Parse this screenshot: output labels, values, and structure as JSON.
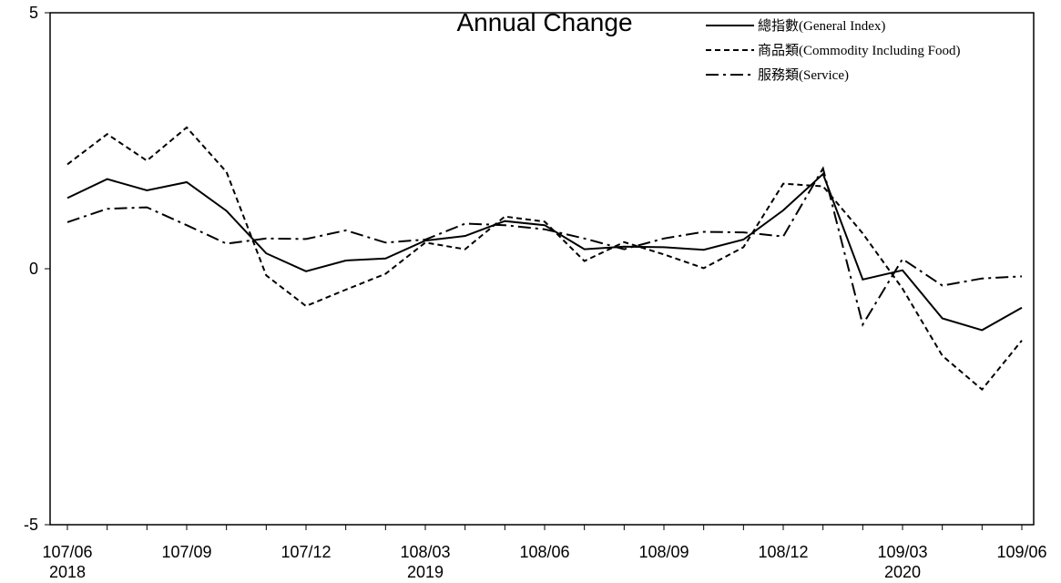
{
  "chart_data": {
    "type": "line",
    "title": "Annual Change",
    "ylim": [
      -5,
      5
    ],
    "y_ticks": [
      "5",
      "0",
      "-5"
    ],
    "y_tick_values": [
      5,
      0,
      -5
    ],
    "x": [
      "107/06",
      "107/07",
      "107/08",
      "107/09",
      "107/10",
      "107/11",
      "107/12",
      "108/01",
      "108/02",
      "108/03",
      "108/04",
      "108/05",
      "108/06",
      "108/07",
      "108/08",
      "108/09",
      "108/10",
      "108/11",
      "108/12",
      "109/01",
      "109/02",
      "109/03",
      "109/04",
      "109/05",
      "109/06"
    ],
    "x_tick_labels": [
      {
        "index": 0,
        "label": "107/06",
        "year": "2018"
      },
      {
        "index": 3,
        "label": "107/09",
        "year": ""
      },
      {
        "index": 6,
        "label": "107/12",
        "year": ""
      },
      {
        "index": 9,
        "label": "108/03",
        "year": "2019"
      },
      {
        "index": 12,
        "label": "108/06",
        "year": ""
      },
      {
        "index": 15,
        "label": "108/09",
        "year": ""
      },
      {
        "index": 18,
        "label": "108/12",
        "year": ""
      },
      {
        "index": 21,
        "label": "109/03",
        "year": "2020"
      },
      {
        "index": 24,
        "label": "109/06",
        "year": ""
      }
    ],
    "series": [
      {
        "name": "總指數(General Index)",
        "dash": "solid",
        "values": [
          1.38,
          1.75,
          1.53,
          1.69,
          1.13,
          0.3,
          -0.05,
          0.16,
          0.2,
          0.55,
          0.64,
          0.93,
          0.85,
          0.38,
          0.43,
          0.42,
          0.37,
          0.57,
          1.14,
          1.85,
          -0.21,
          -0.03,
          -0.97,
          -1.2,
          -0.76
        ]
      },
      {
        "name": "商品類(Commodity Including Food)",
        "dash": "dashed",
        "values": [
          2.04,
          2.63,
          2.11,
          2.76,
          1.89,
          -0.13,
          -0.73,
          -0.41,
          -0.1,
          0.51,
          0.38,
          1.02,
          0.92,
          0.15,
          0.52,
          0.28,
          0.01,
          0.42,
          1.66,
          1.61,
          0.69,
          -0.39,
          -1.7,
          -2.36,
          -1.4
        ]
      },
      {
        "name": "服務類(Service)",
        "dash": "dashdot",
        "values": [
          0.91,
          1.17,
          1.2,
          0.85,
          0.49,
          0.59,
          0.58,
          0.75,
          0.51,
          0.57,
          0.88,
          0.85,
          0.77,
          0.59,
          0.38,
          0.59,
          0.72,
          0.71,
          0.63,
          1.96,
          -1.09,
          0.19,
          -0.33,
          -0.19,
          -0.15
        ]
      }
    ],
    "legend_position": "top-right",
    "grid": false
  }
}
